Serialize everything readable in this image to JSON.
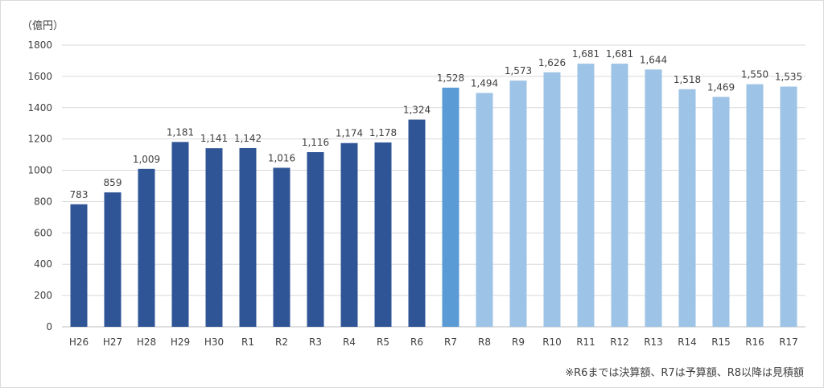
{
  "chart_data": {
    "type": "bar",
    "unit_label": "（億円）",
    "note": "※R6までは決算額、R7は予算額、R8以降は見積額",
    "ylim": [
      0,
      1800
    ],
    "yticks": [
      0,
      200,
      400,
      600,
      800,
      1000,
      1200,
      1400,
      1600,
      1800
    ],
    "categories": [
      "H26",
      "H27",
      "H28",
      "H29",
      "H30",
      "R1",
      "R2",
      "R3",
      "R4",
      "R5",
      "R6",
      "R7",
      "R8",
      "R9",
      "R10",
      "R11",
      "R12",
      "R13",
      "R14",
      "R15",
      "R16",
      "R17"
    ],
    "values": [
      783,
      859,
      1009,
      1181,
      1141,
      1142,
      1016,
      1116,
      1174,
      1178,
      1324,
      1528,
      1494,
      1573,
      1626,
      1681,
      1681,
      1644,
      1518,
      1469,
      1550,
      1535
    ],
    "value_labels": [
      "783",
      "859",
      "1,009",
      "1,181",
      "1,141",
      "1,142",
      "1,016",
      "1,116",
      "1,174",
      "1,178",
      "1,324",
      "1,528",
      "1,494",
      "1,573",
      "1,626",
      "1,681",
      "1,681",
      "1,644",
      "1,518",
      "1,469",
      "1,550",
      "1,535"
    ],
    "bar_groups": [
      "settled",
      "settled",
      "settled",
      "settled",
      "settled",
      "settled",
      "settled",
      "settled",
      "settled",
      "settled",
      "settled",
      "budget",
      "estimate",
      "estimate",
      "estimate",
      "estimate",
      "estimate",
      "estimate",
      "estimate",
      "estimate",
      "estimate",
      "estimate"
    ],
    "colors": {
      "settled": "#2F5597",
      "budget": "#5B9BD5",
      "estimate": "#9DC3E6",
      "grid": "#d9d9d9",
      "axis": "#bfbfbf"
    }
  }
}
